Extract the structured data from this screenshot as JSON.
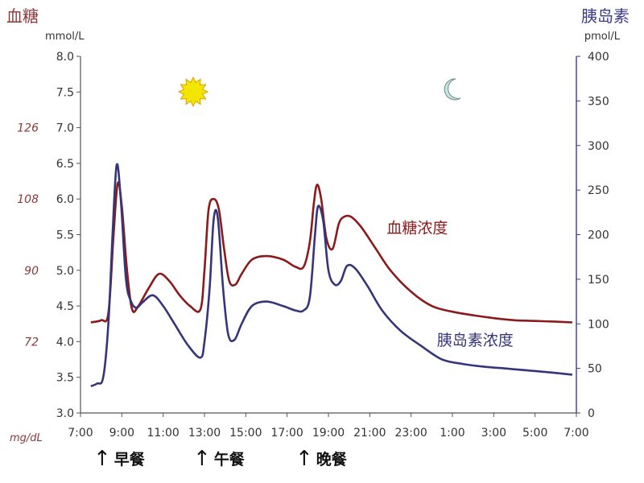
{
  "left_axis": {
    "title": "血糖",
    "unit": "mmol/L",
    "alt_unit": "mg/dL"
  },
  "right_axis": {
    "title": "胰岛素",
    "unit": "pmol/L"
  },
  "meals": [
    "早餐",
    "午餐",
    "晚餐"
  ],
  "icons": {
    "day": "sun-icon",
    "night": "moon-icon"
  },
  "colors": {
    "glucose": "#8b1a1a",
    "insulin": "#35357a",
    "axis_left": "#8b3a3a",
    "axis_right": "#3d3a8c"
  },
  "chart_data": {
    "type": "line",
    "x_ticks": [
      "7:00",
      "9:00",
      "11:00",
      "13:00",
      "15:00",
      "17:00",
      "19:00",
      "21:00",
      "23:00",
      "1:00",
      "3:00",
      "5:00",
      "7:00"
    ],
    "xlim_hours": [
      7,
      31
    ],
    "y_left": {
      "range": [
        3.0,
        8.0
      ],
      "ticks": [
        "3.0",
        "3.5",
        "4.0",
        "4.5",
        "5.0",
        "5.5",
        "6.0",
        "6.5",
        "7.0",
        "7.5",
        "8.0"
      ]
    },
    "y_left_mgdl": {
      "ticks": [
        {
          "value": 4.0,
          "label": "72"
        },
        {
          "value": 5.0,
          "label": "90"
        },
        {
          "value": 6.0,
          "label": "108"
        },
        {
          "value": 7.0,
          "label": "126"
        }
      ]
    },
    "y_right": {
      "range": [
        0,
        400
      ],
      "ticks": [
        "0",
        "50",
        "100",
        "150",
        "200",
        "250",
        "300",
        "350",
        "400"
      ]
    },
    "meal_times": [
      8.0,
      13.0,
      18.0
    ],
    "series": [
      {
        "name": "血糖浓度",
        "axis": "left",
        "x": [
          7.5,
          8.0,
          8.35,
          8.6,
          8.8,
          9.0,
          9.25,
          9.5,
          9.8,
          10.3,
          10.8,
          11.3,
          11.8,
          12.3,
          12.8,
          13.0,
          13.2,
          13.45,
          13.7,
          13.95,
          14.2,
          14.5,
          14.8,
          15.3,
          16.0,
          16.8,
          17.4,
          17.8,
          18.1,
          18.3,
          18.45,
          18.65,
          18.9,
          19.2,
          19.5,
          19.75,
          20.1,
          20.6,
          21.3,
          22.0,
          23.0,
          24.0,
          25.0,
          26.0,
          27.0,
          28.0,
          29.0,
          30.0,
          30.8
        ],
        "values": [
          4.27,
          4.3,
          4.4,
          5.5,
          6.22,
          5.9,
          5.0,
          4.45,
          4.5,
          4.75,
          4.95,
          4.85,
          4.65,
          4.5,
          4.45,
          5.0,
          5.85,
          6.0,
          5.85,
          5.3,
          4.85,
          4.8,
          4.95,
          5.15,
          5.2,
          5.15,
          5.05,
          5.05,
          5.4,
          5.95,
          6.2,
          6.0,
          5.45,
          5.3,
          5.65,
          5.75,
          5.75,
          5.6,
          5.3,
          5.0,
          4.7,
          4.5,
          4.42,
          4.37,
          4.33,
          4.3,
          4.29,
          4.28,
          4.27
        ]
      },
      {
        "name": "胰岛素浓度",
        "axis": "right",
        "x": [
          7.5,
          7.8,
          8.1,
          8.35,
          8.55,
          8.75,
          8.95,
          9.2,
          9.45,
          9.7,
          10.0,
          10.5,
          11.0,
          11.6,
          12.2,
          12.8,
          13.0,
          13.25,
          13.45,
          13.65,
          13.9,
          14.15,
          14.45,
          14.8,
          15.3,
          16.0,
          16.8,
          17.4,
          17.8,
          18.1,
          18.35,
          18.5,
          18.75,
          19.0,
          19.3,
          19.6,
          19.9,
          20.3,
          20.9,
          21.6,
          22.5,
          23.5,
          24.5,
          25.5,
          26.5,
          27.5,
          28.5,
          29.5,
          30.8
        ],
        "values": [
          30,
          33,
          40,
          100,
          200,
          278,
          240,
          150,
          125,
          118,
          124,
          132,
          120,
          98,
          76,
          62,
          80,
          140,
          218,
          218,
          140,
          88,
          82,
          100,
          120,
          125,
          120,
          115,
          115,
          130,
          200,
          232,
          215,
          160,
          144,
          148,
          165,
          162,
          142,
          115,
          92,
          75,
          60,
          55,
          52,
          50,
          48,
          46,
          43
        ]
      }
    ],
    "annotations": [
      {
        "text": "血糖浓度",
        "series": "glucose",
        "x": 23.3,
        "y_left": 5.52
      },
      {
        "text": "胰岛素浓度",
        "series": "insulin",
        "x": 26.1,
        "y_left": 3.95
      }
    ]
  }
}
